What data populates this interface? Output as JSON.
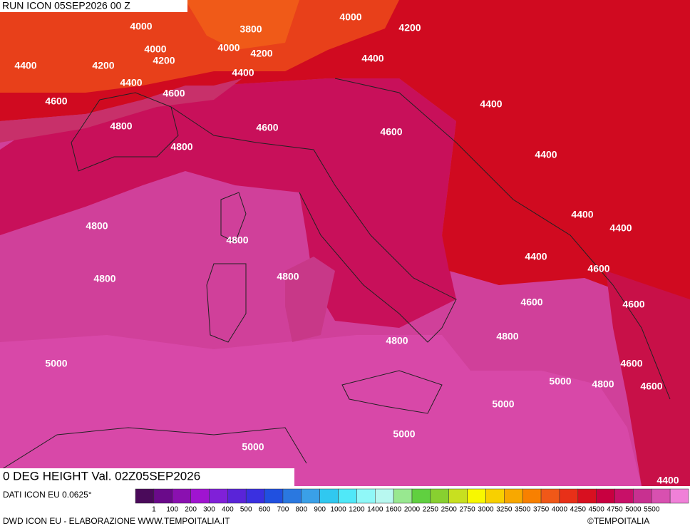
{
  "header": {
    "run": "RUN ICON 05SEP2026 00 Z",
    "field": "0 DEG HEIGHT Val. 02Z05SEP2026"
  },
  "contour_labels": [
    4000,
    3800,
    4000,
    4200,
    4000,
    4000,
    4200,
    4200,
    4200,
    4400,
    4400,
    4400,
    4400,
    4600,
    4600,
    4400,
    4800,
    4600,
    4600,
    4800,
    4400,
    4400,
    4800,
    4400,
    4800,
    4400,
    4600,
    4800,
    4800,
    4600,
    4600,
    4800,
    4800,
    5000,
    4600,
    5000,
    4800,
    4600,
    5000,
    5000,
    5000,
    4400
  ],
  "footer": {
    "source": "DATI ICON EU 0.0625°",
    "credit": "DWD ICON EU - ELABORAZIONE WWW.TEMPOITALIA.IT",
    "copyright": "©TEMPOITALIA"
  },
  "colorbar": {
    "labels": [
      1,
      100,
      200,
      300,
      400,
      500,
      600,
      700,
      800,
      900,
      1000,
      1200,
      1400,
      1600,
      2000,
      2250,
      2500,
      2750,
      3000,
      3250,
      3500,
      3750,
      4000,
      4250,
      4500,
      4750,
      5000,
      5500
    ],
    "colors": [
      "#4a0a5a",
      "#6a0a8a",
      "#8a10b0",
      "#a014d0",
      "#8020d8",
      "#5a24d8",
      "#3a30e0",
      "#2050e0",
      "#2a78e0",
      "#3aa0e8",
      "#30c8f0",
      "#50e8f8",
      "#90f8f8",
      "#b8f8f0",
      "#98e890",
      "#60d040",
      "#88d030",
      "#c8e020",
      "#f8f800",
      "#f8d000",
      "#f8a800",
      "#f88000",
      "#f05818",
      "#e83018",
      "#d81020",
      "#c80040",
      "#c81068",
      "#c83090",
      "#d850b0",
      "#f080d8"
    ]
  }
}
